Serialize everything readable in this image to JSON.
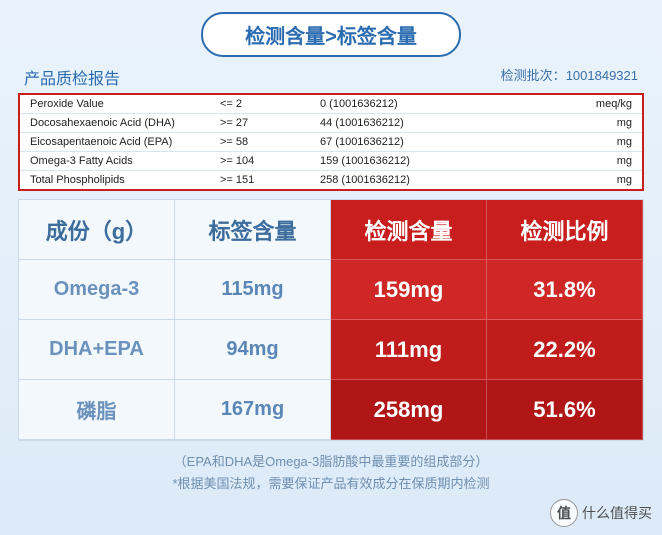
{
  "header": {
    "pill": "检测含量>标签含量",
    "subtitle": "产品质检报告",
    "batch_label": "检测批次：",
    "batch_value": "1001849321"
  },
  "report": {
    "border_color": "#c81e1e",
    "rows": [
      {
        "name": "Peroxide Value",
        "spec": "<= 2",
        "result": "0 (1001636212)",
        "unit": "meq/kg"
      },
      {
        "name": "Docosahexaenoic Acid (DHA)",
        "spec": ">= 27",
        "result": "44 (1001636212)",
        "unit": "mg"
      },
      {
        "name": "Eicosapentaenoic Acid (EPA)",
        "spec": ">= 58",
        "result": "67 (1001636212)",
        "unit": "mg"
      },
      {
        "name": "Omega-3 Fatty Acids",
        "spec": ">= 104",
        "result": "159 (1001636212)",
        "unit": "mg"
      },
      {
        "name": "Total Phospholipids",
        "spec": ">= 151",
        "result": "258 (1001636212)",
        "unit": "mg"
      }
    ]
  },
  "table": {
    "headers": [
      "成份（g）",
      "标签含量",
      "检测含量",
      "检测比例"
    ],
    "header_colors": [
      "#f3f8fd",
      "#f3f8fd",
      "#c81e1e",
      "#c81e1e"
    ],
    "rows": [
      {
        "label": "Omega-3",
        "declared": "115mg",
        "detected": "159mg",
        "ratio": "31.8%"
      },
      {
        "label": "DHA+EPA",
        "declared": "94mg",
        "detected": "111mg",
        "ratio": "22.2%"
      },
      {
        "label": "磷脂",
        "declared": "167mg",
        "detected": "258mg",
        "ratio": "51.6%"
      }
    ],
    "red_base_color": "#c81e1e",
    "red_row_colors": [
      "#cf2626",
      "#c01c1c",
      "#b01616"
    ]
  },
  "footnote": {
    "line1": "（EPA和DHA是Omega-3脂肪酸中最重要的组成部分）",
    "line2": "*根据美国法规，需要保证产品有效成分在保质期内检测"
  },
  "watermark": {
    "icon_text": "值",
    "text": "什么值得买"
  }
}
